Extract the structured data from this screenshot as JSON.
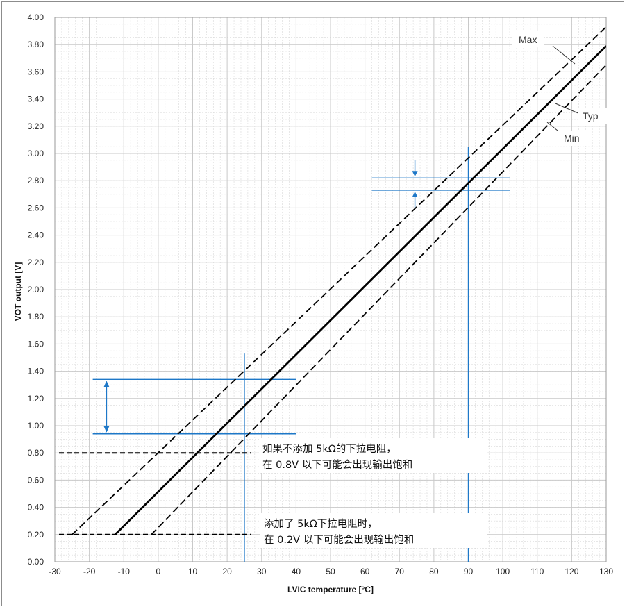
{
  "chart_data": {
    "type": "line",
    "xlabel": "LVIC temperature [°C]",
    "ylabel": "VOT output [V]",
    "xlim": [
      -30,
      130
    ],
    "ylim": [
      0.0,
      4.0
    ],
    "x_ticks": [
      "-30",
      "-20",
      "-10",
      "0",
      "10",
      "20",
      "30",
      "40",
      "50",
      "60",
      "70",
      "80",
      "90",
      "100",
      "110",
      "120",
      "130"
    ],
    "y_ticks": [
      "0.00",
      "0.20",
      "0.40",
      "0.60",
      "0.80",
      "1.00",
      "1.20",
      "1.40",
      "1.60",
      "1.80",
      "2.00",
      "2.20",
      "2.40",
      "2.60",
      "2.80",
      "3.00",
      "3.20",
      "3.40",
      "3.60",
      "3.80",
      "4.00"
    ],
    "grid": true,
    "series": [
      {
        "name": "Max",
        "style": "dashed",
        "x": [
          -25,
          130
        ],
        "y": [
          0.2,
          3.93
        ]
      },
      {
        "name": "Typ",
        "style": "solid",
        "x": [
          -12.5,
          130
        ],
        "y": [
          0.2,
          3.79
        ]
      },
      {
        "name": "Min",
        "style": "dashed",
        "x": [
          -2,
          130
        ],
        "y": [
          0.2,
          3.65
        ]
      }
    ],
    "label_names": {
      "max": "Max",
      "typ": "Typ",
      "min": "Min"
    },
    "annotations": {
      "notes": [
        {
          "line1": "如果不添加 5kΩ的下拉电阻，",
          "line2": "在 0.8V 以下可能会出现输出饱和"
        },
        {
          "line1": "添加了 5kΩ下拉电阻时，",
          "line2": "在 0.2V 以下可能会出现输出饱和"
        }
      ],
      "saturation_levels_v": [
        0.8,
        0.2
      ],
      "marker_temperatures_c": [
        25,
        90
      ],
      "band_at_25c_v": [
        0.94,
        1.34
      ],
      "band_at_90c_v": [
        2.73,
        2.82
      ],
      "accent_color": "#1e78c8",
      "curve_color": "#000000",
      "grid_color": "#c9c9c9"
    }
  }
}
